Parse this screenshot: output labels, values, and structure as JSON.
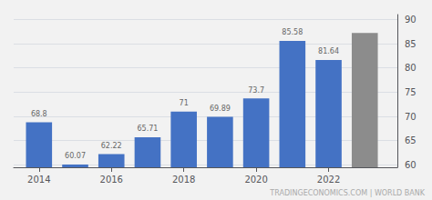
{
  "chart_data": {
    "type": "bar",
    "x": [
      2014,
      2015,
      2016,
      2017,
      2018,
      2019,
      2020,
      2021,
      2022,
      2023
    ],
    "values": [
      68.8,
      60.07,
      62.22,
      65.71,
      71.0,
      69.89,
      73.7,
      85.58,
      81.64,
      87.2
    ],
    "value_labels": [
      "68.8",
      "60.07",
      "62.22",
      "65.71",
      "71",
      "69.89",
      "73.7",
      "85.58",
      "81.64",
      null
    ],
    "colors": [
      "#4472C4",
      "#4472C4",
      "#4472C4",
      "#4472C4",
      "#4472C4",
      "#4472C4",
      "#4472C4",
      "#4472C4",
      "#4472C4",
      "#8C8C8C"
    ],
    "xlim": [
      2013.3,
      2023.9
    ],
    "xticks": [
      2014,
      2016,
      2018,
      2020,
      2022
    ],
    "ylim": [
      59.5,
      91.0
    ],
    "yticks": [
      60,
      65,
      70,
      75,
      80,
      85,
      90
    ],
    "grid": true,
    "annotation": "TRADINGECONOMICS.COM | WORLD BANK"
  }
}
